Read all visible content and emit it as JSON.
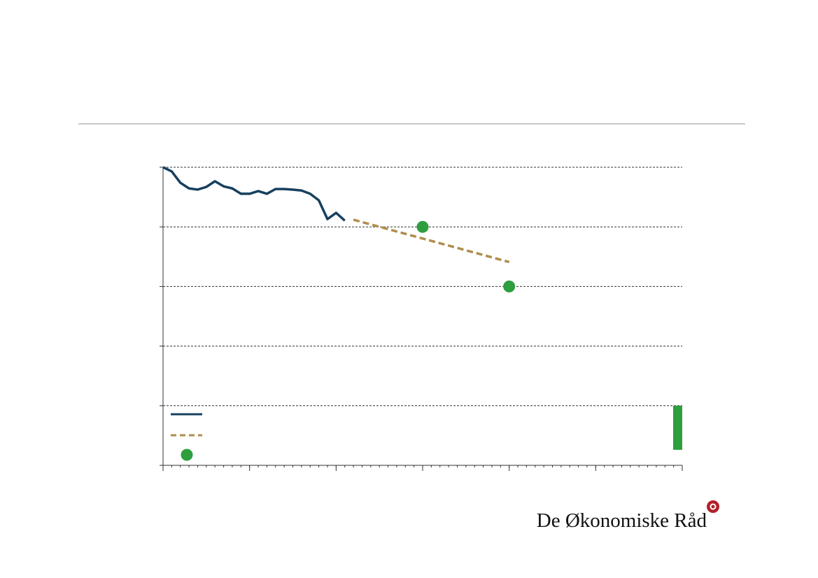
{
  "chart_data": {
    "type": "line",
    "xlim": [
      1990,
      2050
    ],
    "xticks": [
      1990,
      2000,
      2010,
      2020,
      2030,
      2040,
      2050
    ],
    "ylim": [
      0,
      100
    ],
    "yticks": [
      0,
      20,
      40,
      60,
      80,
      100
    ],
    "grid": true,
    "series": [
      {
        "type": "line",
        "style": "solid",
        "color": "#17405e",
        "x": [
          1990,
          1991,
          1992,
          1993,
          1994,
          1995,
          1996,
          1997,
          1998,
          1999,
          2000,
          2001,
          2002,
          2003,
          2004,
          2005,
          2006,
          2007,
          2008,
          2009,
          2010,
          2011
        ],
        "values": [
          100,
          98.6,
          94.8,
          92.9,
          92.5,
          93.4,
          95.3,
          93.6,
          92.9,
          91.1,
          91.1,
          92.0,
          91.1,
          92.7,
          92.7,
          92.5,
          92.2,
          91.1,
          88.9,
          82.6,
          84.7,
          82.1
        ]
      },
      {
        "type": "line",
        "style": "dashed",
        "color": "#b08d4c",
        "x": [
          2012,
          2030
        ],
        "values": [
          82.4,
          68.2
        ]
      },
      {
        "type": "scatter",
        "color": "#2e9e3e",
        "x": [
          2020,
          2030
        ],
        "values": [
          80,
          60
        ]
      },
      {
        "type": "bar",
        "color": "#2e9e3e",
        "x": [
          2050
        ],
        "values": [
          20
        ],
        "base": [
          5.2
        ]
      }
    ]
  },
  "logo": {
    "text": "De Økonomiske Råd"
  }
}
